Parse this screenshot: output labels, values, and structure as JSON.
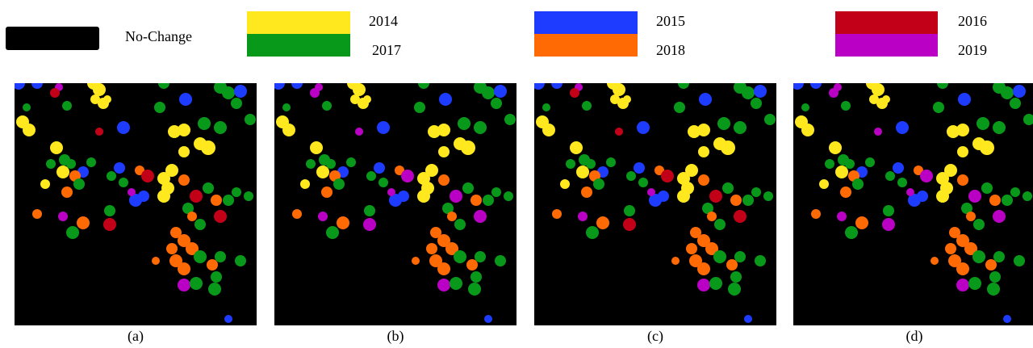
{
  "legend": {
    "items": [
      {
        "label": "No-Change",
        "color": "#000000"
      },
      {
        "label": "2014",
        "color": "#ffe81e"
      },
      {
        "label": "2017",
        "color": "#09991a"
      },
      {
        "label": "2015",
        "color": "#1e3cff"
      },
      {
        "label": "2018",
        "color": "#ff6a05"
      },
      {
        "label": "2016",
        "color": "#c20017"
      },
      {
        "label": "2019",
        "color": "#b900c4"
      }
    ]
  },
  "panels": [
    {
      "caption": "(a)"
    },
    {
      "caption": "(b)"
    },
    {
      "caption": "(c)"
    },
    {
      "caption": "(d)"
    }
  ]
}
